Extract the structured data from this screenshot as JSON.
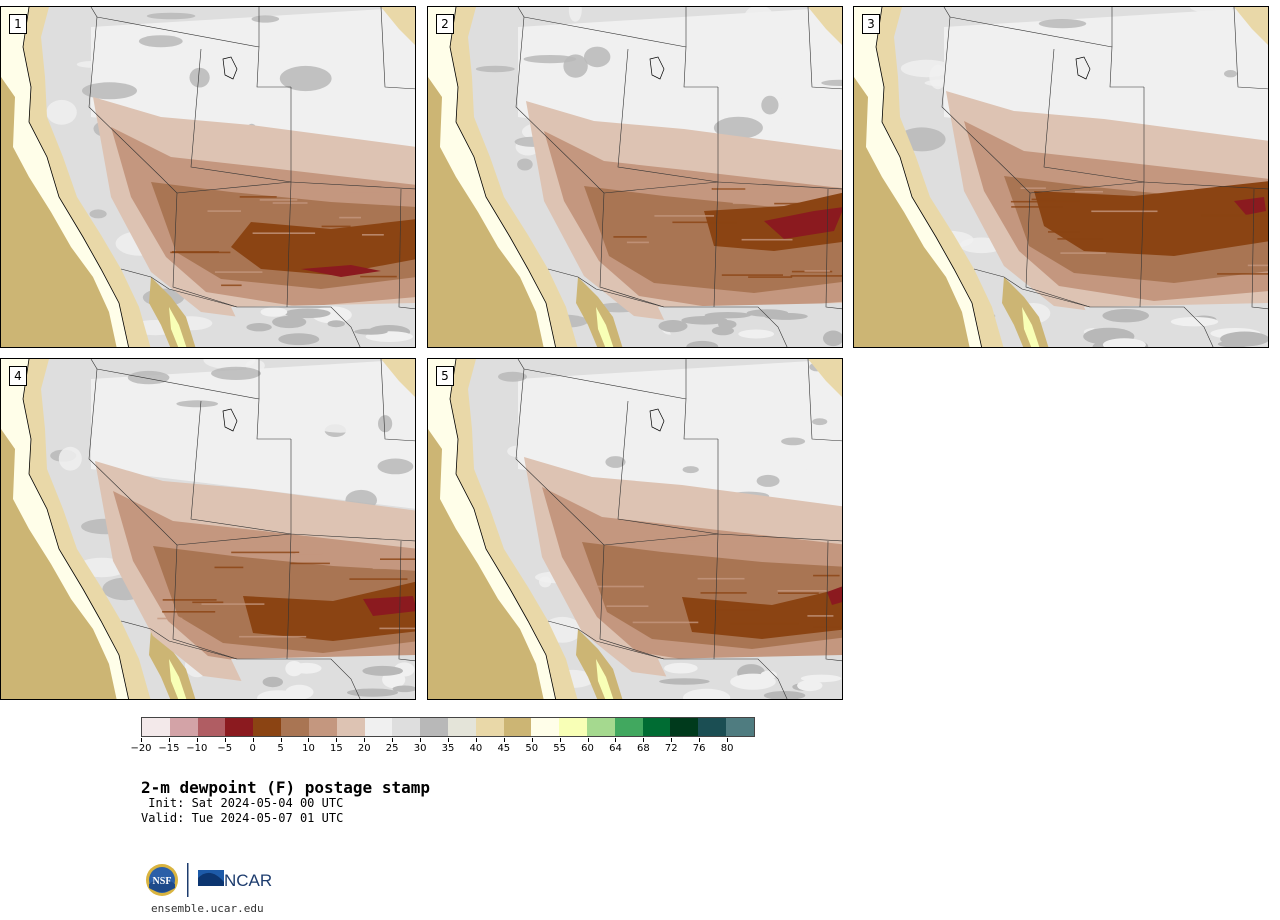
{
  "panels": [
    {
      "label": "1",
      "variant": 0
    },
    {
      "label": "2",
      "variant": 1
    },
    {
      "label": "3",
      "variant": 2
    },
    {
      "label": "4",
      "variant": 3
    },
    {
      "label": "5",
      "variant": 4
    }
  ],
  "colorbar": {
    "colors": [
      "#f3e9ea",
      "#d3a3a7",
      "#b05d63",
      "#8b1a1f",
      "#8b4413",
      "#a97553",
      "#c4977f",
      "#ddc3b3",
      "#f0f0f0",
      "#dedede",
      "#b8b8b8",
      "#e4e4d9",
      "#e9d8a8",
      "#ccb574",
      "#fffee9",
      "#f8ffb6",
      "#a5d98f",
      "#41a85f",
      "#006c33",
      "#003a1c",
      "#1b4e53",
      "#4f7c80"
    ],
    "ticks": [
      "−20",
      "−15",
      "−10",
      "−5",
      "0",
      "5",
      "10",
      "15",
      "20",
      "25",
      "30",
      "35",
      "40",
      "45",
      "50",
      "55",
      "60",
      "64",
      "68",
      "72",
      "76",
      "80"
    ]
  },
  "title": "2-m dewpoint (F) postage stamp",
  "init": " Init: Sat 2024-05-04 00 UTC",
  "valid": "Valid: Tue 2024-05-07 01 UTC",
  "logos": {
    "nsf": "NSF",
    "ncar": "NCAR"
  },
  "site": "ensemble.ucar.edu"
}
